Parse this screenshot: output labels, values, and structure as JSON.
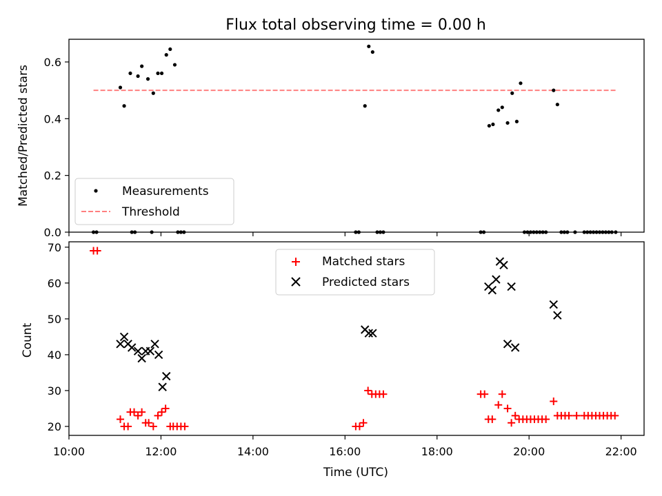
{
  "colors": {
    "measurement": "#000000",
    "threshold": "#ff7f7f",
    "matched": "#ff0000",
    "predicted": "#000000"
  },
  "chart_data": [
    {
      "type": "scatter",
      "title": "Flux total observing time = 0.00 h",
      "xlabel": "",
      "ylabel": "Matched/Predicted stars",
      "xlim": [
        "10:00",
        "22:30"
      ],
      "ylim": [
        0,
        0.68
      ],
      "yticks": [
        "0.0",
        "0.2",
        "0.4",
        "0.6"
      ],
      "legend": {
        "placement": "lower-left",
        "entries": [
          "Measurements",
          "Threshold"
        ]
      },
      "threshold": {
        "value": 0.5,
        "x_start": "10:32",
        "x_end": "21:53"
      },
      "series": [
        {
          "name": "Measurements",
          "marker": "dot",
          "points": [
            [
              "11:07",
              0.51
            ],
            [
              "11:12",
              0.445
            ],
            [
              "11:20",
              0.56
            ],
            [
              "11:30",
              0.55
            ],
            [
              "11:35",
              0.585
            ],
            [
              "11:43",
              0.54
            ],
            [
              "11:50",
              0.49
            ],
            [
              "11:56",
              0.56
            ],
            [
              "12:01",
              0.56
            ],
            [
              "12:07",
              0.625
            ],
            [
              "12:12",
              0.645
            ],
            [
              "12:18",
              0.59
            ],
            [
              "16:26",
              0.445
            ],
            [
              "16:31",
              0.655
            ],
            [
              "16:36",
              0.635
            ],
            [
              "19:08",
              0.375
            ],
            [
              "19:13",
              0.38
            ],
            [
              "19:20",
              0.43
            ],
            [
              "19:25",
              0.44
            ],
            [
              "19:32",
              0.385
            ],
            [
              "19:38",
              0.49
            ],
            [
              "19:44",
              0.39
            ],
            [
              "19:49",
              0.525
            ],
            [
              "20:32",
              0.5
            ],
            [
              "20:37",
              0.45
            ],
            [
              "10:32",
              0
            ],
            [
              "10:36",
              0
            ],
            [
              "11:22",
              0
            ],
            [
              "11:26",
              0
            ],
            [
              "11:48",
              0
            ],
            [
              "12:22",
              0
            ],
            [
              "12:26",
              0
            ],
            [
              "12:30",
              0
            ],
            [
              "16:14",
              0
            ],
            [
              "16:18",
              0
            ],
            [
              "16:42",
              0
            ],
            [
              "16:46",
              0
            ],
            [
              "16:50",
              0
            ],
            [
              "18:57",
              0
            ],
            [
              "19:01",
              0
            ],
            [
              "19:54",
              0
            ],
            [
              "19:58",
              0
            ],
            [
              "20:02",
              0
            ],
            [
              "20:06",
              0
            ],
            [
              "20:10",
              0
            ],
            [
              "20:14",
              0
            ],
            [
              "20:18",
              0
            ],
            [
              "20:22",
              0
            ],
            [
              "20:42",
              0
            ],
            [
              "20:46",
              0
            ],
            [
              "20:50",
              0
            ],
            [
              "21:00",
              0
            ],
            [
              "21:12",
              0
            ],
            [
              "21:16",
              0
            ],
            [
              "21:20",
              0
            ],
            [
              "21:24",
              0
            ],
            [
              "21:28",
              0
            ],
            [
              "21:32",
              0
            ],
            [
              "21:36",
              0
            ],
            [
              "21:40",
              0
            ],
            [
              "21:44",
              0
            ],
            [
              "21:48",
              0
            ],
            [
              "21:53",
              0
            ]
          ]
        }
      ]
    },
    {
      "type": "scatter",
      "title": "",
      "xlabel": "Time (UTC)",
      "ylabel": "Count",
      "xlim": [
        "10:00",
        "22:30"
      ],
      "ylim": [
        17.5,
        71.5
      ],
      "xticks": [
        "10:00",
        "12:00",
        "14:00",
        "16:00",
        "18:00",
        "20:00",
        "22:00"
      ],
      "yticks": [
        "20",
        "30",
        "40",
        "50",
        "60",
        "70"
      ],
      "legend": {
        "placement": "upper-center",
        "entries": [
          "Matched stars",
          "Predicted stars"
        ]
      },
      "series": [
        {
          "name": "Matched stars",
          "marker": "plus",
          "points": [
            [
              "10:32",
              69
            ],
            [
              "10:37",
              69
            ],
            [
              "11:07",
              22
            ],
            [
              "11:12",
              20
            ],
            [
              "11:17",
              20
            ],
            [
              "11:20",
              24
            ],
            [
              "11:25",
              24
            ],
            [
              "11:30",
              23
            ],
            [
              "11:35",
              24
            ],
            [
              "11:40",
              21
            ],
            [
              "11:44",
              21
            ],
            [
              "11:50",
              20
            ],
            [
              "11:56",
              23
            ],
            [
              "12:01",
              24
            ],
            [
              "12:06",
              25
            ],
            [
              "12:12",
              20
            ],
            [
              "12:16",
              20
            ],
            [
              "12:21",
              20
            ],
            [
              "12:26",
              20
            ],
            [
              "12:31",
              20
            ],
            [
              "16:14",
              20
            ],
            [
              "16:19",
              20
            ],
            [
              "16:24",
              21
            ],
            [
              "16:30",
              30
            ],
            [
              "16:35",
              29
            ],
            [
              "16:40",
              29
            ],
            [
              "16:45",
              29
            ],
            [
              "16:50",
              29
            ],
            [
              "18:57",
              29
            ],
            [
              "19:02",
              29
            ],
            [
              "19:07",
              22
            ],
            [
              "19:12",
              22
            ],
            [
              "19:20",
              26
            ],
            [
              "19:25",
              29
            ],
            [
              "19:32",
              25
            ],
            [
              "19:37",
              21
            ],
            [
              "19:42",
              23
            ],
            [
              "19:47",
              22
            ],
            [
              "19:52",
              22
            ],
            [
              "19:57",
              22
            ],
            [
              "20:02",
              22
            ],
            [
              "20:07",
              22
            ],
            [
              "20:12",
              22
            ],
            [
              "20:17",
              22
            ],
            [
              "20:22",
              22
            ],
            [
              "20:32",
              27
            ],
            [
              "20:37",
              23
            ],
            [
              "20:42",
              23
            ],
            [
              "20:47",
              23
            ],
            [
              "20:52",
              23
            ],
            [
              "21:02",
              23
            ],
            [
              "21:12",
              23
            ],
            [
              "21:17",
              23
            ],
            [
              "21:22",
              23
            ],
            [
              "21:27",
              23
            ],
            [
              "21:32",
              23
            ],
            [
              "21:37",
              23
            ],
            [
              "21:42",
              23
            ],
            [
              "21:47",
              23
            ],
            [
              "21:52",
              23
            ]
          ]
        },
        {
          "name": "Predicted stars",
          "marker": "x",
          "points": [
            [
              "11:07",
              43
            ],
            [
              "11:12",
              45
            ],
            [
              "11:17",
              43
            ],
            [
              "11:22",
              42
            ],
            [
              "11:30",
              41
            ],
            [
              "11:35",
              39
            ],
            [
              "11:40",
              41
            ],
            [
              "11:46",
              41
            ],
            [
              "11:52",
              43
            ],
            [
              "11:57",
              40
            ],
            [
              "12:02",
              31
            ],
            [
              "12:07",
              34
            ],
            [
              "16:26",
              47
            ],
            [
              "16:31",
              46
            ],
            [
              "16:36",
              46
            ],
            [
              "19:07",
              59
            ],
            [
              "19:12",
              58
            ],
            [
              "19:17",
              61
            ],
            [
              "19:22",
              66
            ],
            [
              "19:27",
              65
            ],
            [
              "19:32",
              43
            ],
            [
              "19:37",
              59
            ],
            [
              "19:42",
              42
            ],
            [
              "20:32",
              54
            ],
            [
              "20:37",
              51
            ]
          ]
        }
      ]
    }
  ]
}
